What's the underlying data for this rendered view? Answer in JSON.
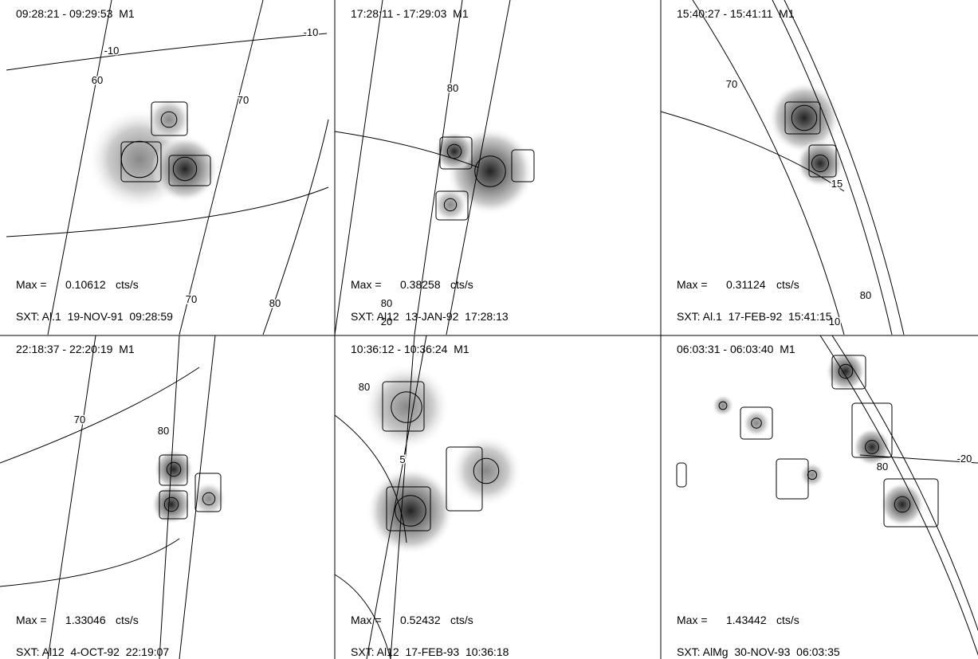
{
  "panels": [
    {
      "header": "09:28:21 - 09:29:53  M1",
      "max_label": "Max =",
      "max": 0.10612,
      "unit": "cts/s",
      "footer": "SXT: Al.1  19-NOV-91  09:28:59",
      "grid_labels": [
        "-10",
        "60",
        "70",
        "-10",
        "70",
        "80"
      ]
    },
    {
      "header": "17:28:11 - 17:29:03  M1",
      "max_label": "Max =",
      "max": 0.38258,
      "unit": "cts/s",
      "footer": "SXT: Al12  13-JAN-92  17:28:13",
      "grid_labels": [
        "80",
        "80",
        "20"
      ]
    },
    {
      "header": "15:40:27 - 15:41:11  M1",
      "max_label": "Max =",
      "max": 0.31124,
      "unit": "cts/s",
      "footer": "SXT: Al.1  17-FEB-92  15:41:15",
      "grid_labels": [
        "70",
        "15",
        "80",
        "10"
      ]
    },
    {
      "header": "22:18:37 - 22:20:19  M1",
      "max_label": "Max =",
      "max": 1.33046,
      "unit": "cts/s",
      "footer": "SXT: Al12  4-OCT-92  22:19:07",
      "grid_labels": [
        "70",
        "80"
      ]
    },
    {
      "header": "10:36:12 - 10:36:24  M1",
      "max_label": "Max =",
      "max": 0.52432,
      "unit": "cts/s",
      "footer": "SXT: Al12  17-FEB-93  10:36:18",
      "grid_labels": [
        "80",
        "5"
      ]
    },
    {
      "header": "06:03:31 - 06:03:40  M1",
      "max_label": "Max =",
      "max": 1.43442,
      "unit": "cts/s",
      "footer": "SXT: AlMg  30-NOV-93  06:03:35",
      "grid_labels": [
        "80",
        "-20"
      ]
    }
  ]
}
